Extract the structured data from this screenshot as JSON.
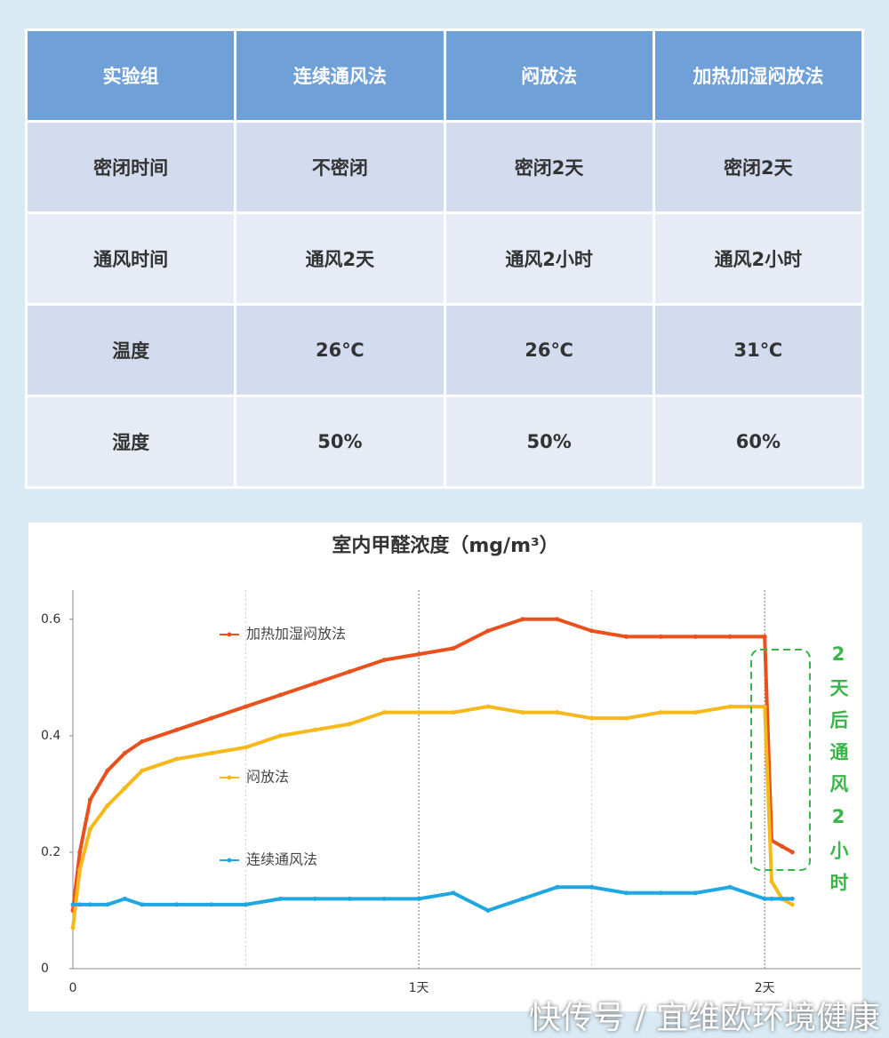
{
  "table": {
    "header": [
      "实验组",
      "连续通风法",
      "闷放法",
      "加热加湿闷放法"
    ],
    "rows": [
      [
        "密闭时间",
        "不密闭",
        "密闭2天",
        "密闭2天"
      ],
      [
        "通风时间",
        "通风2天",
        "通风2小时",
        "通风2小时"
      ],
      [
        "温度",
        "26℃",
        "26℃",
        "31℃"
      ],
      [
        "湿度",
        "50%",
        "50%",
        "60%"
      ]
    ]
  },
  "chart_data": {
    "type": "line",
    "title": "室内甲醛浓度（mg/m³）",
    "x": [
      0,
      0.02,
      0.05,
      0.1,
      0.15,
      0.2,
      0.3,
      0.4,
      0.5,
      0.6,
      0.7,
      0.8,
      0.9,
      1.0,
      1.1,
      1.2,
      1.3,
      1.4,
      1.5,
      1.6,
      1.7,
      1.8,
      1.9,
      2.0,
      2.02,
      2.05,
      2.08
    ],
    "series": [
      {
        "name": "加热加湿闷放法",
        "color": "#e8501e",
        "values": [
          0.1,
          0.2,
          0.29,
          0.34,
          0.37,
          0.39,
          0.41,
          0.43,
          0.45,
          0.47,
          0.49,
          0.51,
          0.53,
          0.54,
          0.55,
          0.58,
          0.6,
          0.6,
          0.58,
          0.57,
          0.57,
          0.57,
          0.57,
          0.57,
          0.22,
          0.21,
          0.2
        ]
      },
      {
        "name": "闷放法",
        "color": "#f6b91c",
        "values": [
          0.07,
          0.17,
          0.24,
          0.28,
          0.31,
          0.34,
          0.36,
          0.37,
          0.38,
          0.4,
          0.41,
          0.42,
          0.44,
          0.44,
          0.44,
          0.45,
          0.44,
          0.44,
          0.43,
          0.43,
          0.44,
          0.44,
          0.45,
          0.45,
          0.15,
          0.12,
          0.11
        ]
      },
      {
        "name": "连续通风法",
        "color": "#1ea7e0",
        "values": [
          0.11,
          0.11,
          0.11,
          0.11,
          0.12,
          0.11,
          0.11,
          0.11,
          0.11,
          0.12,
          0.12,
          0.12,
          0.12,
          0.12,
          0.13,
          0.1,
          0.12,
          0.14,
          0.14,
          0.13,
          0.13,
          0.13,
          0.14,
          0.12,
          0.12,
          0.12,
          0.12
        ]
      }
    ],
    "xlim": [
      0,
      2.2
    ],
    "xticks": [
      0,
      {
        "value": 1,
        "label": "1天"
      },
      {
        "value": 2,
        "label": "2天"
      }
    ],
    "x_minor_grid": [
      0.5,
      1.5
    ],
    "ylim": [
      0,
      0.65
    ],
    "yticks": [
      0,
      0.2,
      0.4,
      0.6
    ],
    "annotation": "2天后通风2小时"
  },
  "watermark": "快传号 / 宜维欧环境健康"
}
